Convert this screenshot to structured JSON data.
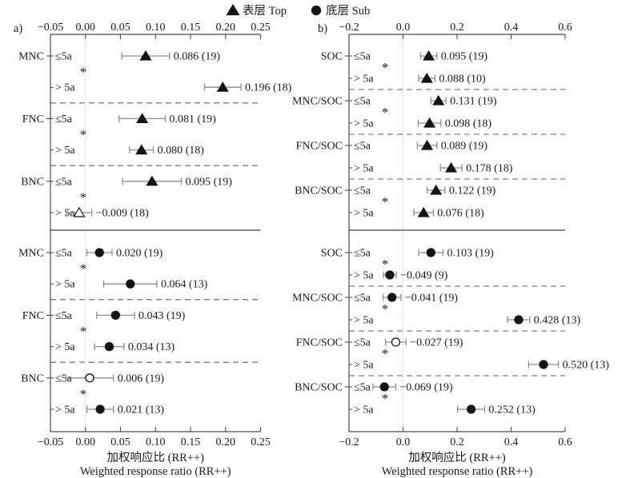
{
  "colors": {
    "marker": "#141414",
    "errorbar": "#8c8c8c",
    "axis": "#4a4a4a",
    "solid_separator": "#3a3a3a",
    "dashed_separator": "#5f5f5f",
    "zero_line": "#c3c3c3",
    "text": "#1a1a1a"
  },
  "sig_symbol": "*",
  "legend": {
    "items": [
      {
        "symbol": "triangle",
        "label": "表层 Top"
      },
      {
        "symbol": "circle",
        "label": "底层 Sub"
      }
    ]
  },
  "axis_title": {
    "cn": "加权响应比 (RR++)",
    "en": "Weighted response ratio (RR++)"
  },
  "chart_data": [
    {
      "panel": "a",
      "tag": "a)",
      "type": "forest-dot-interval",
      "x_axis": {
        "min": -0.05,
        "max": 0.25,
        "tick_values": [
          -0.05,
          0,
          0.05,
          0.1,
          0.15,
          0.2,
          0.25
        ],
        "tick_labels": [
          "−0.05",
          "0.00",
          "0.05",
          "0.10",
          "0.15",
          "0.20",
          "0.25"
        ]
      },
      "zero_reference": 0,
      "sections": [
        {
          "layer": "top",
          "marker": "triangle",
          "groups": [
            {
              "category": "MNC",
              "significant": true,
              "rows": [
                {
                  "subgroup": "≤5a",
                  "mean": 0.086,
                  "ci": [
                    0.052,
                    0.12
                  ],
                  "n": 19,
                  "label": "0.086 (19)",
                  "open": false
                },
                {
                  "subgroup": "> 5a",
                  "mean": 0.196,
                  "ci": [
                    0.17,
                    0.222
                  ],
                  "n": 18,
                  "label": "0.196 (18)",
                  "open": false
                }
              ]
            },
            {
              "category": "FNC",
              "significant": true,
              "rows": [
                {
                  "subgroup": "≤5a",
                  "mean": 0.081,
                  "ci": [
                    0.048,
                    0.114
                  ],
                  "n": 19,
                  "label": "0.081 (19)",
                  "open": false
                },
                {
                  "subgroup": "> 5a",
                  "mean": 0.08,
                  "ci": [
                    0.063,
                    0.097
                  ],
                  "n": 18,
                  "label": "0.080 (18)",
                  "open": false
                }
              ]
            },
            {
              "category": "BNC",
              "significant": true,
              "rows": [
                {
                  "subgroup": "≤5a",
                  "mean": 0.095,
                  "ci": [
                    0.053,
                    0.137
                  ],
                  "n": 19,
                  "label": "0.095 (19)",
                  "open": false
                },
                {
                  "subgroup": "> 5a",
                  "mean": -0.009,
                  "ci": [
                    -0.027,
                    0.009
                  ],
                  "n": 18,
                  "label": "−0.009 (18)",
                  "open": true
                }
              ]
            }
          ]
        },
        {
          "layer": "sub",
          "marker": "circle",
          "groups": [
            {
              "category": "MNC",
              "significant": true,
              "rows": [
                {
                  "subgroup": "≤5a",
                  "mean": 0.02,
                  "ci": [
                    0.002,
                    0.038
                  ],
                  "n": 19,
                  "label": "0.020 (19)",
                  "open": false
                },
                {
                  "subgroup": "> 5a",
                  "mean": 0.064,
                  "ci": [
                    0.026,
                    0.102
                  ],
                  "n": 13,
                  "label": "0.064 (13)",
                  "open": false
                }
              ]
            },
            {
              "category": "FNC",
              "significant": true,
              "rows": [
                {
                  "subgroup": "≤5a",
                  "mean": 0.043,
                  "ci": [
                    0.016,
                    0.07
                  ],
                  "n": 19,
                  "label": "0.043 (19)",
                  "open": false
                },
                {
                  "subgroup": "> 5a",
                  "mean": 0.034,
                  "ci": [
                    0.013,
                    0.055
                  ],
                  "n": 13,
                  "label": "0.034 (13)",
                  "open": false
                }
              ]
            },
            {
              "category": "BNC",
              "significant": true,
              "rows": [
                {
                  "subgroup": "≤5a",
                  "mean": 0.006,
                  "ci": [
                    -0.028,
                    0.04
                  ],
                  "n": 19,
                  "label": "0.006 (19)",
                  "open": true
                },
                {
                  "subgroup": "> 5a",
                  "mean": 0.021,
                  "ci": [
                    0.002,
                    0.04
                  ],
                  "n": 13,
                  "label": "0.021 (13)",
                  "open": false
                }
              ]
            }
          ]
        }
      ]
    },
    {
      "panel": "b",
      "tag": "b)",
      "type": "forest-dot-interval",
      "x_axis": {
        "min": -0.2,
        "max": 0.6,
        "tick_values": [
          -0.2,
          0,
          0.2,
          0.4,
          0.6
        ],
        "tick_labels": [
          "−0.2",
          "0.0",
          "0.2",
          "0.4",
          "0.6"
        ]
      },
      "zero_reference": 0,
      "sections": [
        {
          "layer": "top",
          "marker": "triangle",
          "groups": [
            {
              "category": "SOC",
              "significant": true,
              "rows": [
                {
                  "subgroup": "≤5a",
                  "mean": 0.095,
                  "ci": [
                    0.065,
                    0.125
                  ],
                  "n": 19,
                  "label": "0.095 (19)",
                  "open": false
                },
                {
                  "subgroup": "> 5a",
                  "mean": 0.088,
                  "ci": [
                    0.058,
                    0.118
                  ],
                  "n": 10,
                  "label": "0.088 (10)",
                  "open": false
                }
              ]
            },
            {
              "category": "MNC/SOC",
              "significant": true,
              "rows": [
                {
                  "subgroup": "≤5a",
                  "mean": 0.131,
                  "ci": [
                    0.103,
                    0.159
                  ],
                  "n": 19,
                  "label": "0.131 (19)",
                  "open": false
                },
                {
                  "subgroup": "> 5a",
                  "mean": 0.098,
                  "ci": [
                    0.056,
                    0.14
                  ],
                  "n": 18,
                  "label": "0.098 (18)",
                  "open": false
                }
              ]
            },
            {
              "category": "FNC/SOC",
              "significant": false,
              "rows": [
                {
                  "subgroup": "≤5a",
                  "mean": 0.089,
                  "ci": [
                    0.053,
                    0.125
                  ],
                  "n": 19,
                  "label": "0.089 (19)",
                  "open": false
                },
                {
                  "subgroup": "> 5a",
                  "mean": 0.178,
                  "ci": [
                    0.138,
                    0.218
                  ],
                  "n": 18,
                  "label": "0.178 (18)",
                  "open": false
                }
              ]
            },
            {
              "category": "BNC/SOC",
              "significant": true,
              "rows": [
                {
                  "subgroup": "≤5a",
                  "mean": 0.122,
                  "ci": [
                    0.089,
                    0.155
                  ],
                  "n": 19,
                  "label": "0.122 (19)",
                  "open": false
                },
                {
                  "subgroup": "> 5a",
                  "mean": 0.076,
                  "ci": [
                    0.04,
                    0.112
                  ],
                  "n": 18,
                  "label": "0.076 (18)",
                  "open": false
                }
              ]
            }
          ]
        },
        {
          "layer": "sub",
          "marker": "circle",
          "groups": [
            {
              "category": "SOC",
              "significant": true,
              "rows": [
                {
                  "subgroup": "≤5a",
                  "mean": 0.103,
                  "ci": [
                    0.058,
                    0.148
                  ],
                  "n": 19,
                  "label": "0.103 (19)",
                  "open": false
                },
                {
                  "subgroup": "> 5a",
                  "mean": -0.049,
                  "ci": [
                    -0.073,
                    -0.025
                  ],
                  "n": 9,
                  "label": "−0.049 (9)",
                  "open": false
                }
              ]
            },
            {
              "category": "MNC/SOC",
              "significant": true,
              "rows": [
                {
                  "subgroup": "≤5a",
                  "mean": -0.041,
                  "ci": [
                    -0.074,
                    -0.008
                  ],
                  "n": 19,
                  "label": "−0.041 (19)",
                  "open": false
                },
                {
                  "subgroup": "> 5a",
                  "mean": 0.428,
                  "ci": [
                    0.387,
                    0.469
                  ],
                  "n": 13,
                  "label": "0.428 (13)",
                  "open": false
                }
              ]
            },
            {
              "category": "FNC/SOC",
              "significant": true,
              "rows": [
                {
                  "subgroup": "≤5a",
                  "mean": -0.027,
                  "ci": [
                    -0.065,
                    0.011
                  ],
                  "n": 19,
                  "label": "−0.027 (19)",
                  "open": true
                },
                {
                  "subgroup": "> 5a",
                  "mean": 0.52,
                  "ci": [
                    0.465,
                    0.575
                  ],
                  "n": 13,
                  "label": "0.520 (13)",
                  "open": false
                }
              ]
            },
            {
              "category": "BNC/SOC",
              "significant": true,
              "rows": [
                {
                  "subgroup": "≤5a",
                  "mean": -0.069,
                  "ci": [
                    -0.111,
                    -0.027
                  ],
                  "n": 19,
                  "label": "−0.069 (19)",
                  "open": false
                },
                {
                  "subgroup": "> 5a",
                  "mean": 0.252,
                  "ci": [
                    0.202,
                    0.302
                  ],
                  "n": 13,
                  "label": "0.252 (13)",
                  "open": false
                }
              ]
            }
          ]
        }
      ]
    }
  ]
}
